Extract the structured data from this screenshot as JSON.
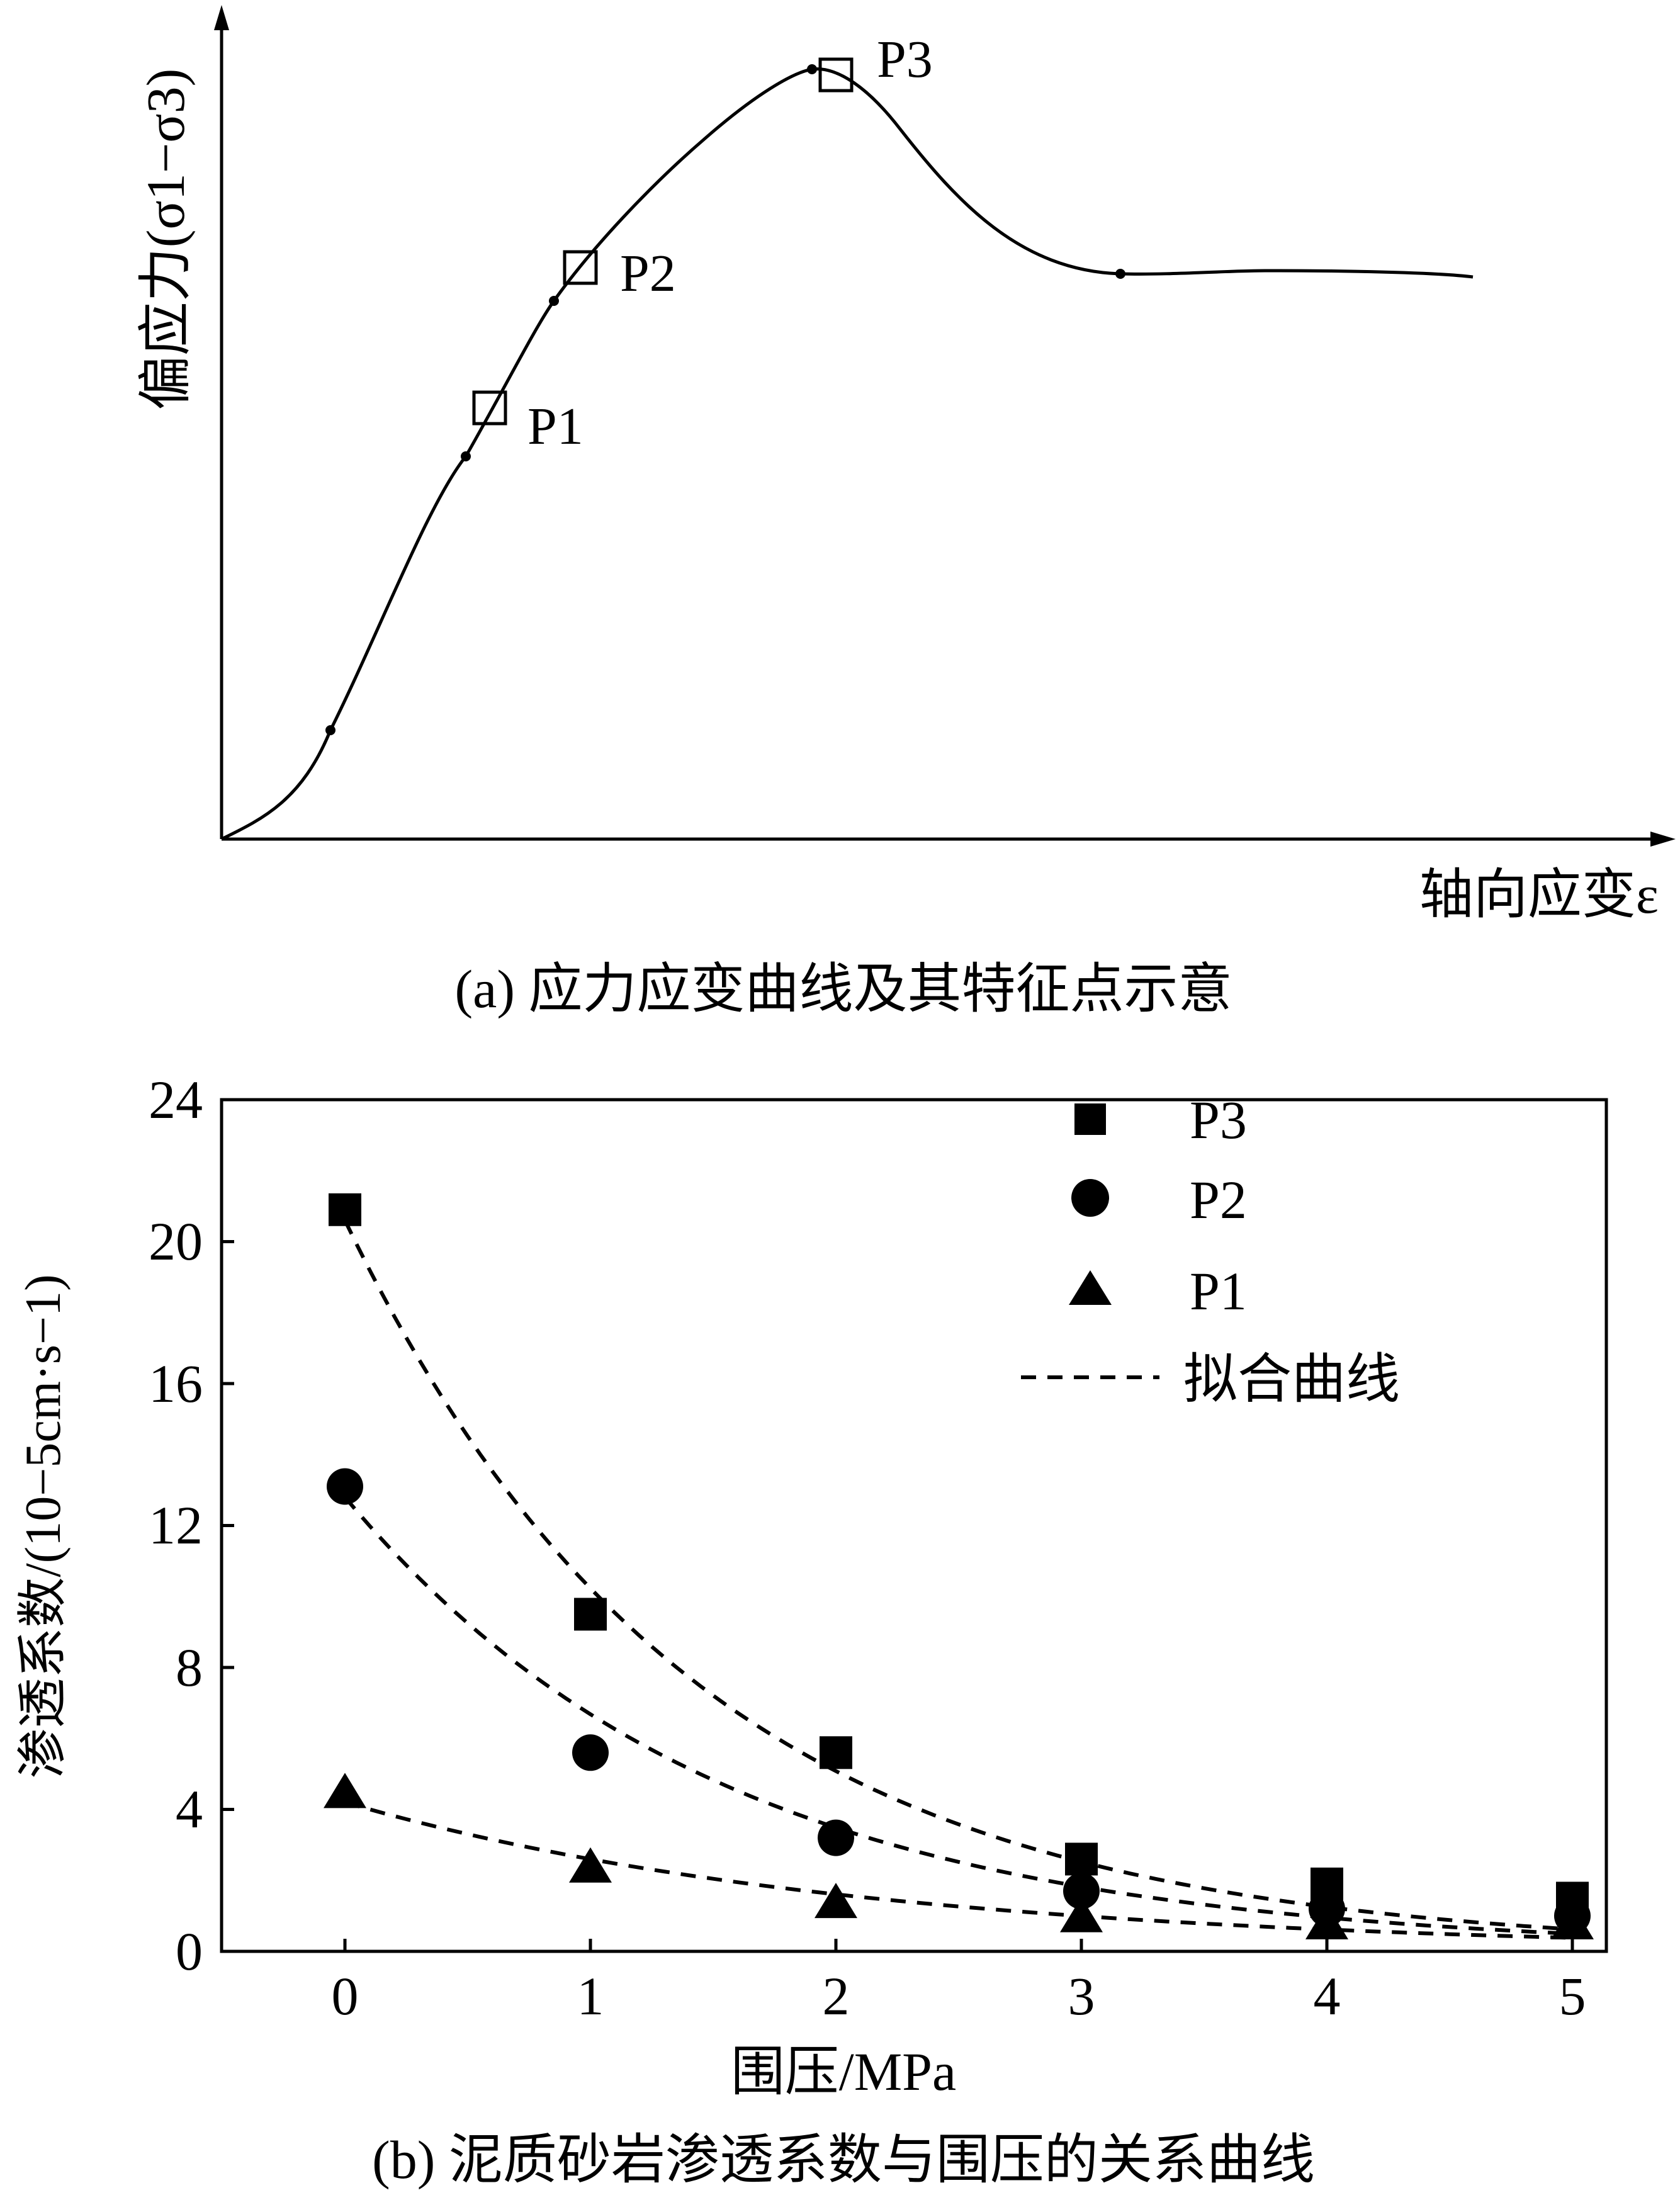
{
  "chart_data": [
    {
      "type": "line",
      "panel_caption": "(a) 应力应变曲线及其特征点示意",
      "ylabel": "偏应力(σ1−σ3)",
      "xlabel": "轴向应变ε",
      "markers": [
        "P1",
        "P2",
        "P3"
      ],
      "grid": false
    },
    {
      "type": "scatter",
      "panel_caption": "(b) 泥质砂岩渗透系数与围压的关系曲线",
      "xlabel": "围压/MPa",
      "ylabel": "渗透系数/(10−5cm·s−1)",
      "xlim": [
        -0.5,
        5.1
      ],
      "ylim": [
        0,
        24
      ],
      "x_ticks": [
        "0",
        "1",
        "2",
        "3",
        "4",
        "5"
      ],
      "y_ticks": [
        "0",
        "4",
        "8",
        "12",
        "16",
        "20",
        "24"
      ],
      "legend_position": "top-right",
      "legend_fit_label": "拟合曲线",
      "grid": false,
      "series": [
        {
          "name": "P3",
          "marker": "square",
          "x": [
            0,
            1,
            2,
            3,
            4,
            5
          ],
          "y": [
            20.9,
            9.5,
            5.6,
            2.6,
            1.9,
            1.5
          ],
          "fit_start": 20.6,
          "fit_decay": 0.7
        },
        {
          "name": "P2",
          "marker": "circle",
          "x": [
            0,
            1,
            2,
            3,
            4,
            5
          ],
          "y": [
            13.1,
            5.6,
            3.2,
            1.7,
            1.2,
            1.0
          ],
          "fit_start": 12.8,
          "fit_decay": 0.65
        },
        {
          "name": "P1",
          "marker": "triangle",
          "x": [
            0,
            1,
            2,
            3,
            4,
            5
          ],
          "y": [
            4.5,
            2.4,
            1.4,
            1.0,
            0.8,
            0.8
          ],
          "fit_start": 4.2,
          "fit_decay": 0.48
        }
      ]
    }
  ]
}
